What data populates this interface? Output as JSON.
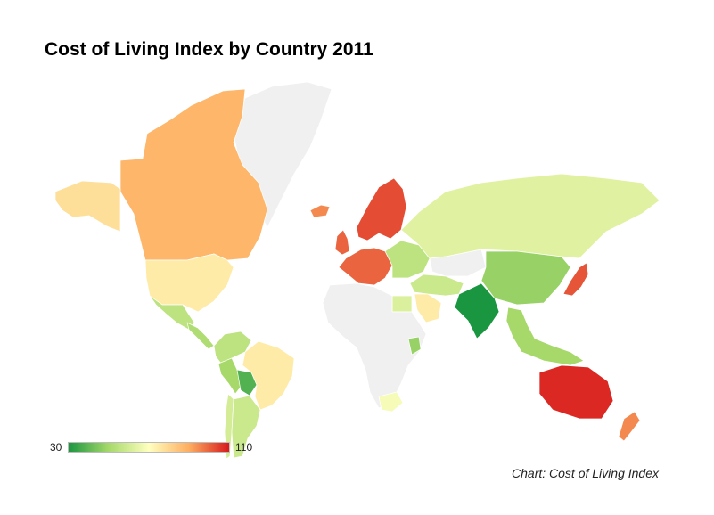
{
  "title": "Cost of Living Index by Country 2011",
  "credit": "Chart: Cost of Living Index",
  "legend": {
    "min": "30",
    "max": "110",
    "colors": [
      "#1a9641",
      "#a6d96a",
      "#ffffbf",
      "#fdae61",
      "#d7191c"
    ]
  },
  "chart_data": {
    "type": "choropleth",
    "range": [
      30,
      110
    ],
    "no_data_color": "#f0f0f0",
    "regions": [
      {
        "id": "greenland",
        "value": null
      },
      {
        "id": "canada",
        "value": 88
      },
      {
        "id": "alaska",
        "value": 78
      },
      {
        "id": "usa",
        "value": 75
      },
      {
        "id": "mexico",
        "value": 55
      },
      {
        "id": "central-america",
        "value": 52
      },
      {
        "id": "colombia-venezuela",
        "value": 55
      },
      {
        "id": "peru",
        "value": 50
      },
      {
        "id": "bolivia",
        "value": 38
      },
      {
        "id": "brazil",
        "value": 75
      },
      {
        "id": "chile",
        "value": 60
      },
      {
        "id": "argentina",
        "value": 58
      },
      {
        "id": "iceland",
        "value": 95
      },
      {
        "id": "scandinavia",
        "value": 103
      },
      {
        "id": "uk",
        "value": 100
      },
      {
        "id": "western-europe",
        "value": 100
      },
      {
        "id": "eastern-europe",
        "value": 55
      },
      {
        "id": "russia",
        "value": 63
      },
      {
        "id": "kazakhstan",
        "value": null
      },
      {
        "id": "china",
        "value": 48
      },
      {
        "id": "india",
        "value": 30
      },
      {
        "id": "middle-east",
        "value": 58
      },
      {
        "id": "saudi-arabia",
        "value": 75
      },
      {
        "id": "egypt",
        "value": 62
      },
      {
        "id": "africa",
        "value": null
      },
      {
        "id": "kenya",
        "value": 48
      },
      {
        "id": "south-africa",
        "value": 68
      },
      {
        "id": "japan",
        "value": 102
      },
      {
        "id": "southeast-asia",
        "value": 50
      },
      {
        "id": "australia",
        "value": 108
      },
      {
        "id": "new-zealand",
        "value": 95
      }
    ]
  }
}
